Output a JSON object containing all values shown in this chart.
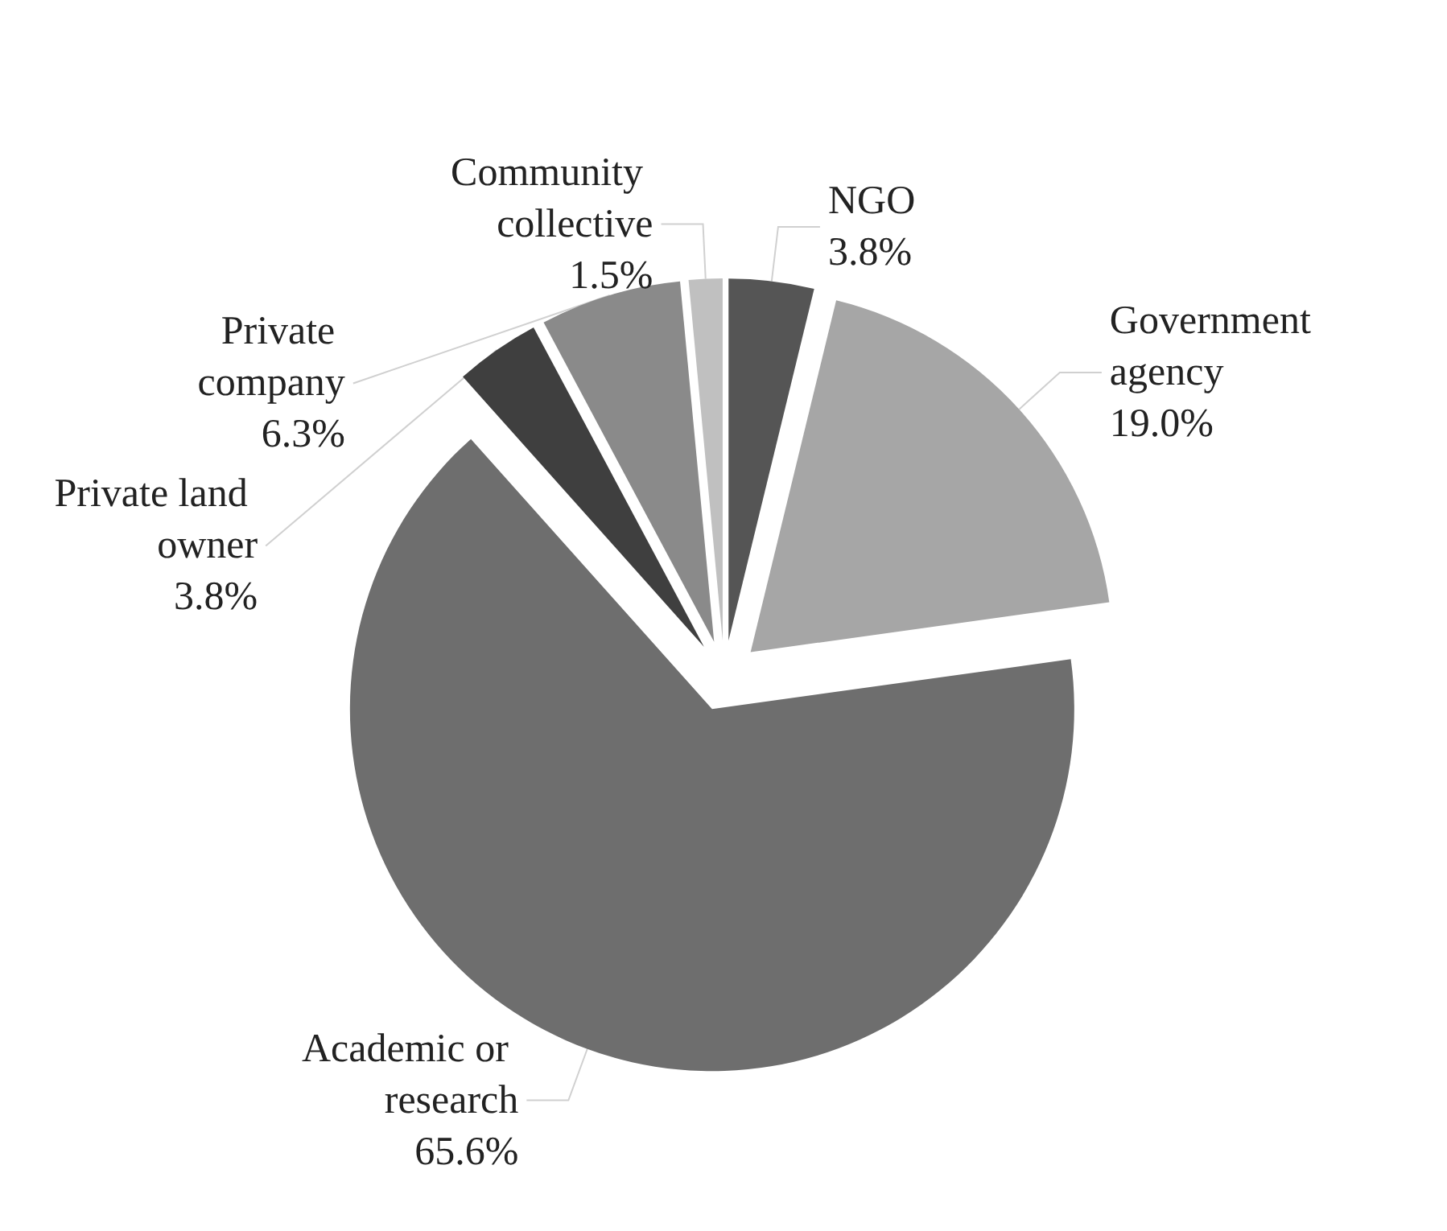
{
  "chart_data": {
    "type": "pie",
    "categories": [
      "NGO",
      "Government agency",
      "Academic or research",
      "Private land owner",
      "Private company",
      "Community collective"
    ],
    "values": [
      3.8,
      19.0,
      65.6,
      3.8,
      6.3,
      1.5
    ],
    "value_labels": [
      "3.8%",
      "19.0%",
      "65.6%",
      "3.8%",
      "6.3%",
      "1.5%"
    ],
    "colors": [
      "#555555",
      "#a6a6a6",
      "#6e6e6e",
      "#3f3f3f",
      "#8a8a8a",
      "#c0c0c0"
    ],
    "legend": false
  }
}
